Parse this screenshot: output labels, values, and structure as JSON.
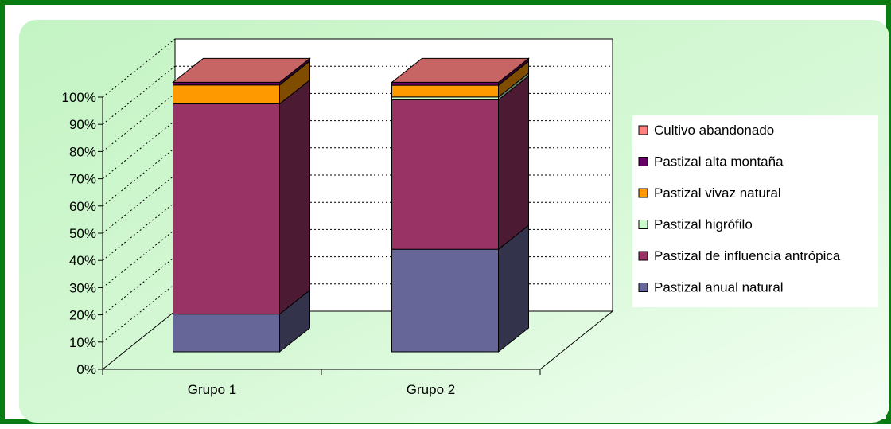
{
  "chart_data": {
    "type": "bar",
    "stacked": true,
    "style": "3d-percent-stacked",
    "categories": [
      "Grupo 1",
      "Grupo 2"
    ],
    "series": [
      {
        "name": "Pastizal anual natural",
        "values": [
          14,
          35
        ],
        "color": "#676698"
      },
      {
        "name": "Pastizal de influencia antrópica",
        "values": [
          78,
          51
        ],
        "color": "#993366"
      },
      {
        "name": "Pastizal higrófilo",
        "values": [
          0,
          1
        ],
        "color": "#CCFFCC"
      },
      {
        "name": "Pastizal vivaz natural",
        "values": [
          7,
          4
        ],
        "color": "#FF9900"
      },
      {
        "name": "Pastizal alta montaña",
        "values": [
          1,
          1
        ],
        "color": "#660066"
      },
      {
        "name": "Cultivo abandonado",
        "values": [
          0,
          0
        ],
        "color": "#FF8080"
      }
    ],
    "legend_order": [
      5,
      4,
      3,
      2,
      1,
      0
    ],
    "y_ticks": [
      "0%",
      "10%",
      "20%",
      "30%",
      "40%",
      "50%",
      "60%",
      "70%",
      "80%",
      "90%",
      "100%"
    ],
    "ylim": [
      0,
      100
    ],
    "grid": true,
    "legend_position": "right",
    "background_color": "#ccffcc",
    "border_color": "#0a7d12"
  }
}
